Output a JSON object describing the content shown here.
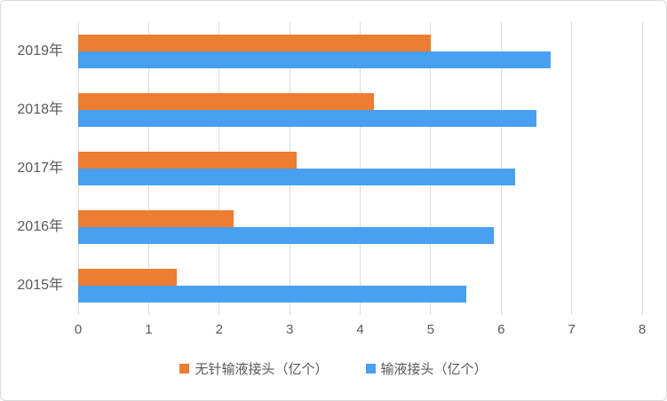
{
  "chart_data": {
    "type": "bar",
    "orientation": "horizontal",
    "title": "",
    "xlabel": "",
    "ylabel": "",
    "categories": [
      "2019年",
      "2018年",
      "2017年",
      "2016年",
      "2015年"
    ],
    "series": [
      {
        "name": "无针输液接头（亿个）",
        "color": "#ed7d31",
        "values": [
          5.0,
          4.2,
          3.1,
          2.2,
          1.4
        ]
      },
      {
        "name": "输液接头（亿个）",
        "color": "#47a0f2",
        "values": [
          6.7,
          6.5,
          6.2,
          5.9,
          5.5
        ]
      }
    ],
    "xlim": [
      0,
      8
    ],
    "x_ticks": [
      0,
      1,
      2,
      3,
      4,
      5,
      6,
      7,
      8
    ],
    "grid": "vertical-only",
    "legend_position": "bottom"
  },
  "colors": {
    "background": "#ffffff",
    "border": "#d9d9d9",
    "gridline": "#dbdbdb",
    "text": "#595959",
    "series_1": "#ed7d31",
    "series_2": "#47a0f2"
  }
}
